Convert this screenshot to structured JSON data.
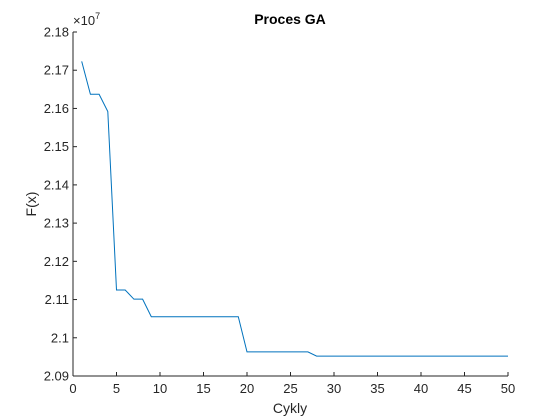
{
  "chart_data": {
    "type": "line",
    "title": "Proces GA",
    "xlabel": "Cykly",
    "ylabel": "F(x)",
    "y_exponent_base": "×10",
    "y_exponent_power": "7",
    "xlim": [
      0,
      50
    ],
    "ylim": [
      2.09,
      2.18
    ],
    "x_ticks": [
      0,
      5,
      10,
      15,
      20,
      25,
      30,
      35,
      40,
      45,
      50
    ],
    "x_tick_labels": [
      "0",
      "5",
      "10",
      "15",
      "20",
      "25",
      "30",
      "35",
      "40",
      "45",
      "50"
    ],
    "y_ticks": [
      2.09,
      2.1,
      2.11,
      2.12,
      2.13,
      2.14,
      2.15,
      2.16,
      2.17,
      2.18
    ],
    "y_tick_labels": [
      "2.09",
      "2.1",
      "2.11",
      "2.12",
      "2.13",
      "2.14",
      "2.15",
      "2.16",
      "2.17",
      "2.18"
    ],
    "grid": false,
    "line_color": "#0072BD",
    "axis_color": "#262626",
    "series": [
      {
        "x": [
          1,
          2,
          3,
          4,
          5,
          6,
          7,
          8,
          9,
          10,
          11,
          12,
          13,
          14,
          15,
          16,
          17,
          18,
          19,
          20,
          21,
          22,
          23,
          24,
          25,
          26,
          27,
          28,
          29,
          30,
          31,
          32,
          33,
          34,
          35,
          36,
          37,
          38,
          39,
          40,
          41,
          42,
          43,
          44,
          45,
          46,
          47,
          48,
          49,
          50
        ],
        "values": [
          2.1723,
          2.1637,
          2.1637,
          2.1592,
          2.1125,
          2.1125,
          2.1101,
          2.1101,
          2.1055,
          2.1055,
          2.1055,
          2.1055,
          2.1055,
          2.1055,
          2.1055,
          2.1055,
          2.1055,
          2.1055,
          2.1055,
          2.0963,
          2.0963,
          2.0963,
          2.0963,
          2.0963,
          2.0963,
          2.0963,
          2.0963,
          2.0952,
          2.0952,
          2.0952,
          2.0952,
          2.0952,
          2.0952,
          2.0952,
          2.0952,
          2.0952,
          2.0952,
          2.0952,
          2.0952,
          2.0952,
          2.0952,
          2.0952,
          2.0952,
          2.0952,
          2.0952,
          2.0952,
          2.0952,
          2.0952,
          2.0952,
          2.0952
        ]
      }
    ]
  }
}
